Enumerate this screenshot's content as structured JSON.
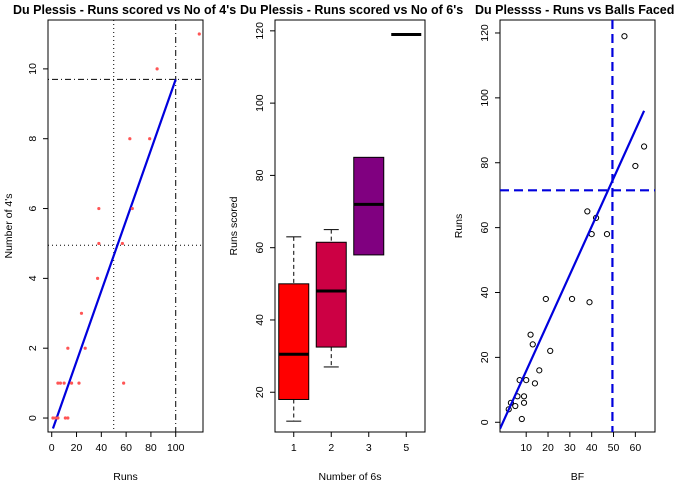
{
  "chart_data": [
    {
      "type": "scatter",
      "title": "Du Plessis - Runs scored vs No of 4's",
      "xlabel": "Runs",
      "ylabel": "Number of 4's",
      "xlim": [
        -3,
        122
      ],
      "ylim": [
        -0.4,
        11.4
      ],
      "xticks": [
        0,
        20,
        40,
        60,
        80,
        100
      ],
      "yticks": [
        0,
        2,
        4,
        6,
        8,
        10
      ],
      "point_color": "#ff5555",
      "points": [
        {
          "x": 1,
          "y": 0
        },
        {
          "x": 3,
          "y": 0
        },
        {
          "x": 5,
          "y": 0
        },
        {
          "x": 11,
          "y": 0
        },
        {
          "x": 13,
          "y": 0
        },
        {
          "x": 5,
          "y": 1
        },
        {
          "x": 7,
          "y": 1
        },
        {
          "x": 10,
          "y": 1
        },
        {
          "x": 16,
          "y": 1
        },
        {
          "x": 22,
          "y": 1
        },
        {
          "x": 58,
          "y": 1
        },
        {
          "x": 13,
          "y": 2
        },
        {
          "x": 27,
          "y": 2
        },
        {
          "x": 24,
          "y": 3
        },
        {
          "x": 37,
          "y": 4
        },
        {
          "x": 38,
          "y": 5
        },
        {
          "x": 57,
          "y": 5
        },
        {
          "x": 38,
          "y": 6
        },
        {
          "x": 65,
          "y": 6
        },
        {
          "x": 63,
          "y": 8
        },
        {
          "x": 79,
          "y": 8
        },
        {
          "x": 85,
          "y": 10
        },
        {
          "x": 119,
          "y": 11
        }
      ],
      "regression_line": {
        "x1": 1,
        "y1": -0.3,
        "x2": 100,
        "y2": 9.7,
        "color": "#0000dd"
      },
      "ref_lines": [
        {
          "orientation": "vertical",
          "value": 50,
          "style": "dotted"
        },
        {
          "orientation": "horizontal",
          "value": 4.95,
          "style": "dotted"
        },
        {
          "orientation": "vertical",
          "value": 100,
          "style": "dotdash"
        },
        {
          "orientation": "horizontal",
          "value": 9.7,
          "style": "dotdash"
        }
      ]
    },
    {
      "type": "box",
      "title": "Du Plessis - Runs scored vs No of 6's",
      "xlabel": "Number of 6s",
      "ylabel": "Runs scored",
      "ylim": [
        9,
        123
      ],
      "yticks": [
        20,
        40,
        60,
        80,
        100,
        120
      ],
      "categories": [
        "1",
        "2",
        "3",
        "5"
      ],
      "boxes": [
        {
          "label": "1",
          "min": 12,
          "q1": 18,
          "median": 30.5,
          "q3": 50,
          "max": 63,
          "color": "#ff0000"
        },
        {
          "label": "2",
          "min": 27,
          "q1": 32.5,
          "median": 48,
          "q3": 61.5,
          "max": 65,
          "color": "#cc0044"
        },
        {
          "label": "3",
          "min": 58,
          "q1": 58,
          "median": 72,
          "q3": 85,
          "max": 85,
          "color": "#800080"
        },
        {
          "label": "5",
          "min": 119,
          "q1": 119,
          "median": 119,
          "q3": 119,
          "max": 119,
          "color": "#000000"
        }
      ]
    },
    {
      "type": "scatter",
      "title": "Du Plessss - Runs vs Balls Faced",
      "xlabel": "BF",
      "ylabel": "Runs",
      "xlim": [
        -2,
        69
      ],
      "ylim": [
        -3,
        124
      ],
      "xticks": [
        10,
        20,
        30,
        40,
        50,
        60
      ],
      "yticks": [
        0,
        20,
        40,
        60,
        80,
        100,
        120
      ],
      "points": [
        {
          "x": 2,
          "y": 4
        },
        {
          "x": 3,
          "y": 6
        },
        {
          "x": 5,
          "y": 5
        },
        {
          "x": 6,
          "y": 8
        },
        {
          "x": 7,
          "y": 13
        },
        {
          "x": 8,
          "y": 1
        },
        {
          "x": 9,
          "y": 6
        },
        {
          "x": 9,
          "y": 8
        },
        {
          "x": 10,
          "y": 13
        },
        {
          "x": 12,
          "y": 27
        },
        {
          "x": 13,
          "y": 24
        },
        {
          "x": 14,
          "y": 12
        },
        {
          "x": 16,
          "y": 16
        },
        {
          "x": 19,
          "y": 38
        },
        {
          "x": 21,
          "y": 22
        },
        {
          "x": 31,
          "y": 38
        },
        {
          "x": 38,
          "y": 65
        },
        {
          "x": 39,
          "y": 37
        },
        {
          "x": 40,
          "y": 58
        },
        {
          "x": 42,
          "y": 63
        },
        {
          "x": 47,
          "y": 58
        },
        {
          "x": 55,
          "y": 119
        },
        {
          "x": 60,
          "y": 79
        },
        {
          "x": 64,
          "y": 85
        }
      ],
      "regression_line": {
        "x1": -2,
        "y1": -2,
        "x2": 64,
        "y2": 96,
        "color": "#0000dd"
      },
      "ref_lines": [
        {
          "orientation": "vertical",
          "value": 49.5,
          "style": "dashed",
          "color": "#0000dd"
        },
        {
          "orientation": "horizontal",
          "value": 71.5,
          "style": "dashed",
          "color": "#0000dd"
        }
      ]
    }
  ]
}
